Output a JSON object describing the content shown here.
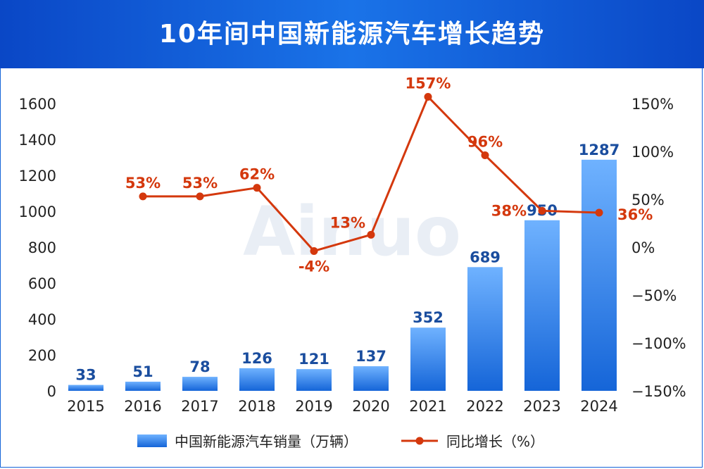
{
  "title": "10年间中国新能源汽车增长趋势",
  "watermark": "Ainuo",
  "colors": {
    "header": "#0a47c6",
    "bar_top": "#6fb2ff",
    "bar_bottom": "#1565d8",
    "line": "#d4380d",
    "bar_label": "#1a4d9e"
  },
  "chart_data": {
    "type": "bar",
    "categories": [
      "2015",
      "2016",
      "2017",
      "2018",
      "2019",
      "2020",
      "2021",
      "2022",
      "2023",
      "2024"
    ],
    "series": [
      {
        "name": "中国新能源汽车销量（万辆）",
        "type": "bar",
        "axis": "left",
        "values": [
          33,
          51,
          78,
          126,
          121,
          137,
          352,
          689,
          950,
          1287
        ],
        "labels": [
          "33",
          "51",
          "78",
          "126",
          "121",
          "137",
          "352",
          "689",
          "950",
          "1287"
        ]
      },
      {
        "name": "同比增长（%）",
        "type": "line",
        "axis": "right",
        "values": [
          null,
          53,
          53,
          62,
          -4,
          13,
          157,
          96,
          38,
          36
        ],
        "labels": [
          "",
          "53%",
          "53%",
          "62%",
          "-4%",
          "13%",
          "157%",
          "96%",
          "38%",
          "36%"
        ]
      }
    ],
    "left_axis": {
      "ylim": [
        0,
        1600
      ],
      "ticks": [
        "0",
        "200",
        "400",
        "600",
        "800",
        "1000",
        "1200",
        "1400",
        "1600"
      ]
    },
    "right_axis": {
      "ylim": [
        -150,
        150
      ],
      "ticks": [
        "−150%",
        "−100%",
        "−50%",
        "0%",
        "50%",
        "100%",
        "150%"
      ],
      "tick_values": [
        -150,
        -100,
        -50,
        0,
        50,
        100,
        150
      ]
    },
    "legend": {
      "placement": "bottom",
      "bar_label": "中国新能源汽车销量（万辆）",
      "line_label": "同比增长（%）"
    },
    "grid": false
  }
}
